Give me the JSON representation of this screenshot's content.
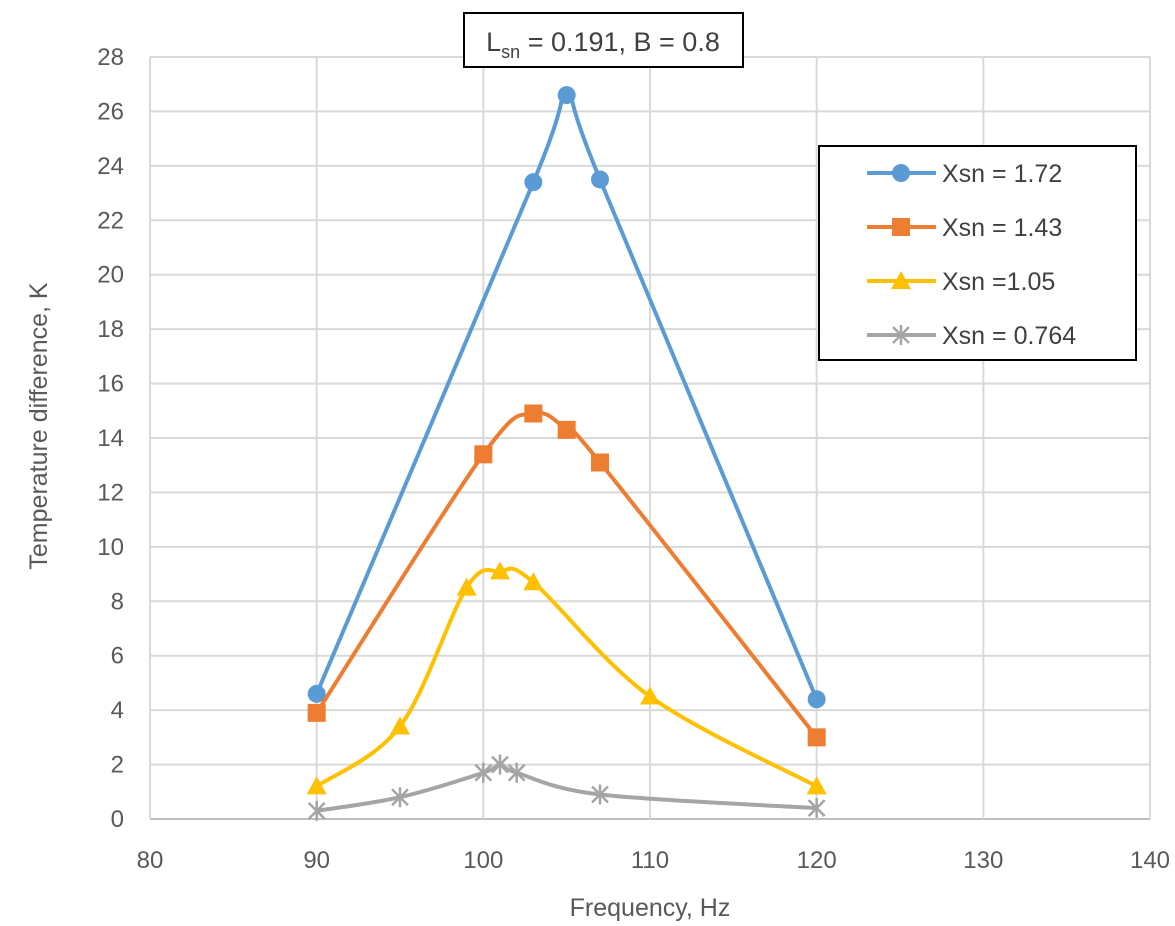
{
  "chart_data": {
    "type": "line",
    "title_main": "L",
    "title_sub": "sn",
    "title_rest": " = 0.191, B = 0.8",
    "xlabel": "Frequency, Hz",
    "ylabel": "Temperature difference, K",
    "xlim": [
      80,
      140
    ],
    "ylim": [
      0,
      28
    ],
    "xticks": [
      80,
      90,
      100,
      110,
      120,
      130,
      140
    ],
    "yticks": [
      0,
      2,
      4,
      6,
      8,
      10,
      12,
      14,
      16,
      18,
      20,
      22,
      24,
      26,
      28
    ],
    "grid": true,
    "smoothed": true,
    "legend_position": "top-right",
    "series": [
      {
        "name": "Xsn = 1.72",
        "color": "#5B9BD5",
        "marker": "circle",
        "x": [
          90,
          103,
          105,
          107,
          120
        ],
        "y": [
          4.6,
          23.4,
          26.6,
          23.5,
          4.4
        ]
      },
      {
        "name": "Xsn = 1.43",
        "color": "#ED7D31",
        "marker": "square",
        "x": [
          90,
          100,
          103,
          105,
          107,
          120
        ],
        "y": [
          3.9,
          13.4,
          14.9,
          14.3,
          13.1,
          3.0
        ]
      },
      {
        "name": "Xsn =1.05",
        "color": "#FFC000",
        "marker": "triangle",
        "x": [
          90,
          95,
          99,
          101,
          103,
          110,
          120
        ],
        "y": [
          1.2,
          3.4,
          8.5,
          9.1,
          8.7,
          4.5,
          1.2
        ]
      },
      {
        "name": "Xsn = 0.764",
        "color": "#A5A5A5",
        "marker": "star",
        "x": [
          90,
          95,
          100,
          101,
          102,
          107,
          120
        ],
        "y": [
          0.3,
          0.8,
          1.7,
          2.0,
          1.7,
          0.9,
          0.4
        ]
      }
    ]
  }
}
